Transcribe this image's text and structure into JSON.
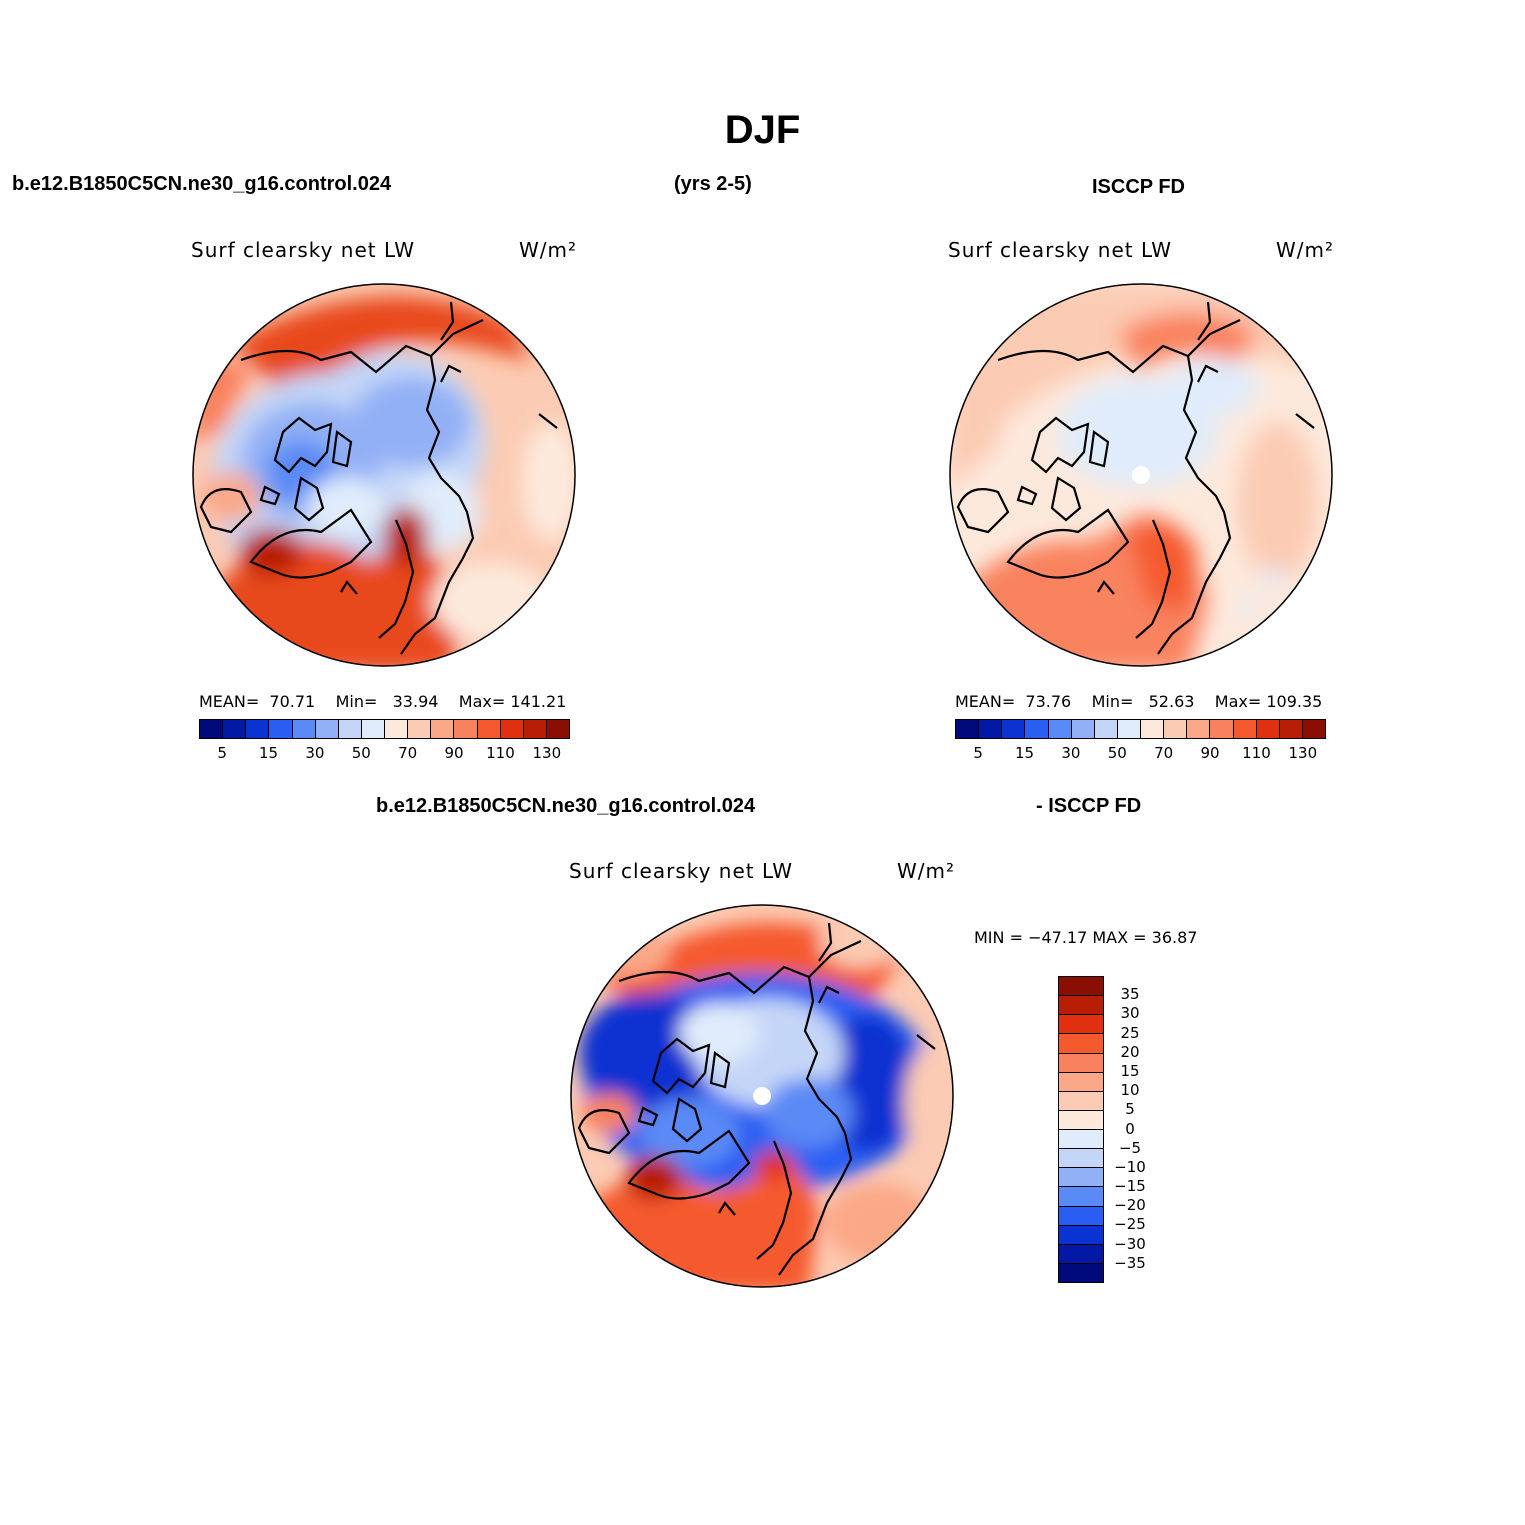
{
  "title": "DJF",
  "top_left_case": "b.e12.B1850C5CN.ne30_g16.control.024",
  "years": "(yrs 2-5)",
  "top_right_case": "ISCCP FD",
  "bottom_case": "b.e12.B1850C5CN.ne30_g16.control.024",
  "bottom_case2": "- ISCCP FD",
  "panels": [
    {
      "variable": "Surf clearsky net LW",
      "units": "W/m²",
      "mean_label": "MEAN=",
      "mean": "70.71",
      "min_label": "Min=",
      "min": "33.94",
      "max_label": "Max=",
      "max": "141.21"
    },
    {
      "variable": "Surf clearsky net LW",
      "units": "W/m²",
      "mean_label": "MEAN=",
      "mean": "73.76",
      "min_label": "Min=",
      "min": "52.63",
      "max_label": "Max=",
      "max": "109.35"
    },
    {
      "variable": "Surf clearsky net LW",
      "units": "W/m²",
      "range_label": "MIN = −47.17 MAX =   36.87"
    }
  ],
  "colorbar_abs": {
    "ticks": [
      "5",
      "15",
      "30",
      "50",
      "70",
      "90",
      "110",
      "130"
    ],
    "colors": [
      "#000a7a",
      "#0418a6",
      "#0a33d1",
      "#2a5ef2",
      "#5a8af5",
      "#92b0f5",
      "#c4d6f8",
      "#e0ecfb",
      "#fde9dc",
      "#fccbb3",
      "#fba888",
      "#f9825e",
      "#f55a2e",
      "#e03010",
      "#b81e06",
      "#8a0e02"
    ]
  },
  "colorbar_diff": {
    "ticks": [
      "35",
      "30",
      "25",
      "20",
      "15",
      "10",
      "5",
      "0",
      "−5",
      "−10",
      "−15",
      "−20",
      "−25",
      "−30",
      "−35"
    ],
    "colors": [
      "#8a0e02",
      "#b81e06",
      "#e03010",
      "#f55a2e",
      "#f9825e",
      "#fba888",
      "#fccbb3",
      "#fde9dc",
      "#e0ecfb",
      "#c4d6f8",
      "#92b0f5",
      "#5a8af5",
      "#2a5ef2",
      "#0a33d1",
      "#0418a6",
      "#000a7a"
    ]
  }
}
